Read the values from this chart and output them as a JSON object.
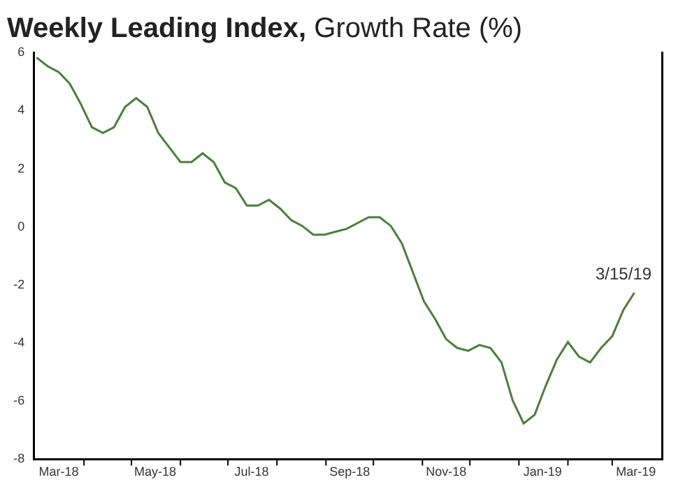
{
  "chart_data": {
    "type": "line",
    "title": "Weekly Leading Index,",
    "subtitle": "Growth Rate (%)",
    "x": [
      "2018-03-02",
      "2018-03-09",
      "2018-03-16",
      "2018-03-23",
      "2018-03-30",
      "2018-04-06",
      "2018-04-13",
      "2018-04-20",
      "2018-04-27",
      "2018-05-04",
      "2018-05-11",
      "2018-05-18",
      "2018-05-25",
      "2018-06-01",
      "2018-06-08",
      "2018-06-15",
      "2018-06-22",
      "2018-06-29",
      "2018-07-06",
      "2018-07-13",
      "2018-07-20",
      "2018-07-27",
      "2018-08-03",
      "2018-08-10",
      "2018-08-17",
      "2018-08-24",
      "2018-08-31",
      "2018-09-07",
      "2018-09-14",
      "2018-09-21",
      "2018-09-28",
      "2018-10-05",
      "2018-10-12",
      "2018-10-19",
      "2018-10-26",
      "2018-11-02",
      "2018-11-09",
      "2018-11-16",
      "2018-11-23",
      "2018-11-30",
      "2018-12-07",
      "2018-12-14",
      "2018-12-21",
      "2018-12-28",
      "2019-01-04",
      "2019-01-11",
      "2019-01-18",
      "2019-01-25",
      "2019-02-01",
      "2019-02-08",
      "2019-02-15",
      "2019-02-22",
      "2019-03-01",
      "2019-03-08",
      "2019-03-15"
    ],
    "series": [
      {
        "color": "#4a7f3a",
        "values": [
          5.8,
          5.5,
          5.3,
          4.9,
          4.2,
          3.4,
          3.2,
          3.4,
          4.1,
          4.4,
          4.1,
          3.2,
          2.7,
          2.2,
          2.2,
          2.5,
          2.2,
          1.5,
          1.3,
          0.7,
          0.7,
          0.9,
          0.6,
          0.2,
          0.0,
          -0.3,
          -0.3,
          -0.2,
          -0.1,
          0.1,
          0.3,
          0.3,
          0.0,
          -0.6,
          -1.6,
          -2.6,
          -3.2,
          -3.9,
          -4.2,
          -4.3,
          -4.1,
          -4.2,
          -4.7,
          -6.0,
          -6.8,
          -6.5,
          -5.5,
          -4.6,
          -4.0,
          -4.5,
          -4.7,
          -4.2,
          -3.8,
          -2.9,
          -2.3
        ]
      }
    ],
    "annotations": [
      {
        "text": "3/15/19",
        "x": "2019-03-15",
        "y": -2.3
      }
    ],
    "xlim": [
      "2018-03-01",
      "2019-04-01"
    ],
    "xticks": [
      {
        "value": "2018-04-01",
        "label": null
      },
      {
        "value": "2018-05-01",
        "label": null
      },
      {
        "value": "2018-06-01",
        "label": null
      },
      {
        "value": "2018-07-01",
        "label": null
      },
      {
        "value": "2018-08-01",
        "label": null
      },
      {
        "value": "2018-09-01",
        "label": null
      },
      {
        "value": "2018-10-01",
        "label": null
      },
      {
        "value": "2018-11-01",
        "label": null
      },
      {
        "value": "2018-12-01",
        "label": null
      },
      {
        "value": "2019-01-01",
        "label": null
      },
      {
        "value": "2019-02-01",
        "label": null
      },
      {
        "value": "2019-03-01",
        "label": null
      },
      {
        "value": "2018-03-16",
        "label": "Mar-18"
      },
      {
        "value": "2018-05-16",
        "label": "May-18"
      },
      {
        "value": "2018-07-16",
        "label": "Jul-18"
      },
      {
        "value": "2018-09-16",
        "label": "Sep-18"
      },
      {
        "value": "2018-11-16",
        "label": "Nov-18"
      },
      {
        "value": "2019-01-16",
        "label": "Jan-19"
      },
      {
        "value": "2019-03-16",
        "label": "Mar-19"
      }
    ],
    "ylim": [
      -8,
      6
    ],
    "yticks": [
      -8,
      -6,
      -4,
      -2,
      0,
      2,
      4,
      6
    ],
    "grid": false,
    "marker": "none",
    "line_style": "solid"
  }
}
